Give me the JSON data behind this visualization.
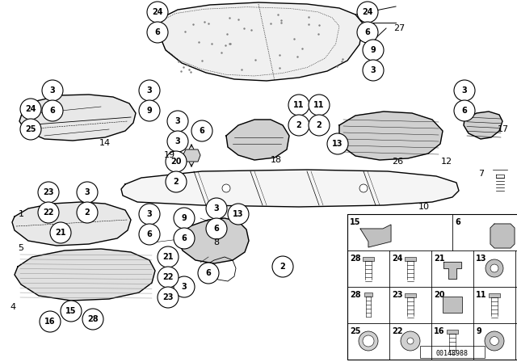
{
  "bg_color": "#ffffff",
  "part_number_ref": "00148988",
  "fig_w": 6.4,
  "fig_h": 4.48,
  "dpi": 100
}
